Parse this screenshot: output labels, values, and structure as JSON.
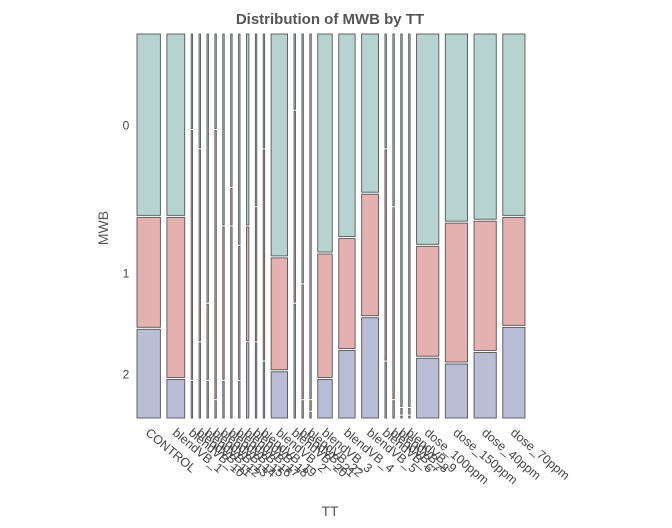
{
  "chart_data": {
    "type": "mosaic",
    "title": "Distribution of MWB by TT",
    "xlabel": "TT",
    "ylabel": "MWB",
    "y_categories": [
      "0",
      "1",
      "2"
    ],
    "colors": [
      "#b7d3d0",
      "#e5b1b0",
      "#b9bdd5"
    ],
    "columns": [
      {
        "label": "CONTROL",
        "weight": 1.0,
        "props": [
          0.475,
          0.29,
          0.235
        ]
      },
      {
        "label": "blendVB_1",
        "weight": 0.76,
        "props": [
          0.475,
          0.42,
          0.105
        ]
      },
      {
        "label": "blendVB_10",
        "weight": 0.06,
        "props": [
          0.25,
          0.65,
          0.1
        ]
      },
      {
        "label": "blendVB_11",
        "weight": 0.06,
        "props": [
          0.3,
          0.5,
          0.2
        ]
      },
      {
        "label": "blendVB_12",
        "weight": 0.06,
        "props": [
          0.7,
          0.2,
          0.1
        ]
      },
      {
        "label": "blendVB_13",
        "weight": 0.06,
        "props": [
          0.25,
          0.7,
          0.05
        ]
      },
      {
        "label": "blendVB_14",
        "weight": 0.06,
        "props": [
          0.5,
          0.4,
          0.1
        ]
      },
      {
        "label": "blendVB_15",
        "weight": 0.06,
        "props": [
          0.4,
          0.1,
          0.5
        ]
      },
      {
        "label": "blendVB_16",
        "weight": 0.06,
        "props": [
          0.55,
          0.35,
          0.1
        ]
      },
      {
        "label": "blendVB_17",
        "weight": 0.1,
        "props": [
          0.5,
          0.3,
          0.2
        ]
      },
      {
        "label": "blendVB_18",
        "weight": 0.06,
        "props": [
          0.45,
          0.35,
          0.2
        ]
      },
      {
        "label": "blendVB_19",
        "weight": 0.06,
        "props": [
          0.3,
          0.55,
          0.15
        ]
      },
      {
        "label": "blendVB_2",
        "weight": 0.7,
        "props": [
          0.58,
          0.295,
          0.125
        ]
      },
      {
        "label": "blendVB_20",
        "weight": 0.06,
        "props": [
          0.2,
          0.5,
          0.3
        ]
      },
      {
        "label": "blendVB_21",
        "weight": 0.06,
        "props": [
          0.65,
          0.3,
          0.05
        ]
      },
      {
        "label": "blendVB_22",
        "weight": 0.06,
        "props": [
          0.95,
          0.03,
          0.02
        ]
      },
      {
        "label": "blendVB_3",
        "weight": 0.62,
        "props": [
          0.57,
          0.325,
          0.105
        ]
      },
      {
        "label": "blendVB_4",
        "weight": 0.7,
        "props": [
          0.53,
          0.29,
          0.18
        ]
      },
      {
        "label": "blendVB_5",
        "weight": 0.72,
        "props": [
          0.415,
          0.32,
          0.265
        ]
      },
      {
        "label": "blendVB_6",
        "weight": 0.06,
        "props": [
          0.3,
          0.55,
          0.15
        ]
      },
      {
        "label": "blendVB_7",
        "weight": 0.06,
        "props": [
          0.45,
          0.5,
          0.05
        ]
      },
      {
        "label": "blendVB_8",
        "weight": 0.06,
        "props": [
          0.97,
          0.02,
          0.01
        ]
      },
      {
        "label": "blendVB_9",
        "weight": 0.06,
        "props": [
          0.97,
          0.02,
          0.01
        ]
      },
      {
        "label": "dose_100ppm",
        "weight": 0.95,
        "props": [
          0.55,
          0.29,
          0.16
        ]
      },
      {
        "label": "dose_150ppm",
        "weight": 0.95,
        "props": [
          0.49,
          0.365,
          0.145
        ]
      },
      {
        "label": "dose_40ppm",
        "weight": 0.95,
        "props": [
          0.485,
          0.34,
          0.175
        ]
      },
      {
        "label": "dose_70ppm",
        "weight": 0.95,
        "props": [
          0.475,
          0.285,
          0.24
        ]
      }
    ]
  }
}
